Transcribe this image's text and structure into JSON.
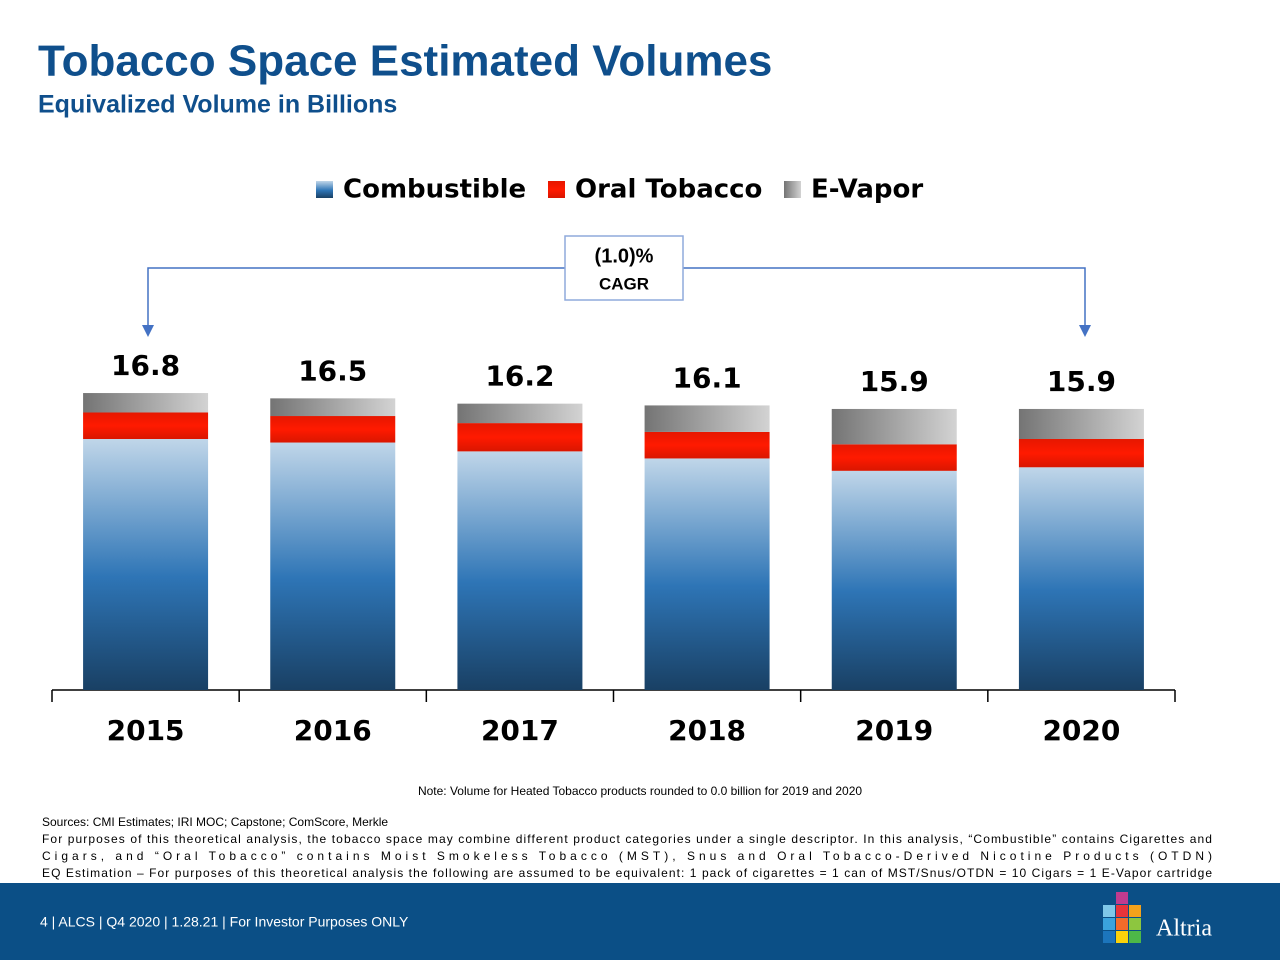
{
  "chart_data": {
    "type": "stacked_bar",
    "title": "Tobacco Space Estimated Volumes",
    "subtitle": "Equivalized Volume in Billions",
    "categories": [
      "2015",
      "2016",
      "2017",
      "2018",
      "2019",
      "2020"
    ],
    "series": [
      {
        "name": "Combustible",
        "color": "#2e75b6",
        "values": [
          14.2,
          14.0,
          13.5,
          13.1,
          12.4,
          12.6
        ]
      },
      {
        "name": "Oral Tobacco",
        "color": "#ff1a00",
        "values": [
          1.5,
          1.5,
          1.6,
          1.5,
          1.5,
          1.6
        ]
      },
      {
        "name": "E-Vapor",
        "color": "#a6a6a6",
        "values": [
          1.1,
          1.0,
          1.1,
          1.5,
          2.0,
          1.7
        ]
      }
    ],
    "totals": [
      16.8,
      16.5,
      16.2,
      16.1,
      15.9,
      15.9
    ],
    "ylim": [
      0,
      18.5
    ],
    "annotations": {
      "cagr_value": "(1.0)%",
      "cagr_label": "CAGR"
    },
    "note": "Note: Volume for Heated Tobacco products rounded to 0.0 billion for 2019 and 2020",
    "sources": [
      "Sources:  CMI Estimates; IRI MOC; Capstone; ComScore, Merkle",
      "For purposes of this theoretical analysis, the tobacco space may combine different product categories under a single descriptor. In this analysis, “Combustible” contains Cigarettes and",
      "Cigars, and “Oral Tobacco” contains Moist Smokeless Tobacco (MST), Snus and Oral Tobacco-Derived Nicotine Products (OTDN)",
      "EQ Estimation – For purposes of this theoretical analysis the following are assumed to be equivalent: 1 pack of cigarettes = 1 can of MST/Snus/OTDN = 10 Cigars = 1 E-Vapor cartridge"
    ]
  },
  "footer": {
    "text": "4 | ALCS | Q4 2020 | 1.28.21 | For Investor Purposes ONLY",
    "logo": "Altria"
  }
}
